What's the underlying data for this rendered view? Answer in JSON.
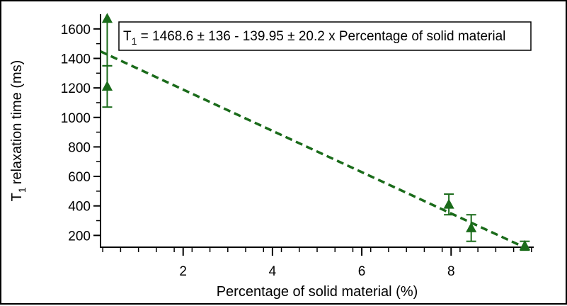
{
  "chart_data": {
    "type": "scatter",
    "xlabel": "Percentage of solid material (%)",
    "ylabel": "relaxation time (ms)",
    "ylabel_symbol": "T",
    "ylabel_subscript": "1",
    "annotation": {
      "symbol": "T",
      "subscript": "1",
      "text": " = 1468.6 ± 136 - 139.95 ± 20.2 x Percentage of solid material"
    },
    "xlim": [
      0.15,
      9.85
    ],
    "ylim": [
      120,
      1700
    ],
    "x_ticks": [
      2,
      4,
      6,
      8
    ],
    "y_ticks": [
      200,
      400,
      600,
      800,
      1000,
      1200,
      1400,
      1600
    ],
    "x_tick_labels": [
      "2",
      "4",
      "6",
      "8"
    ],
    "y_tick_labels": [
      "200",
      "400",
      "600",
      "800",
      "1000",
      "1200",
      "1400",
      "1600"
    ],
    "grid": false,
    "series": [
      {
        "marker": "triangle",
        "color": "#1a6b1a",
        "points": [
          {
            "x": 0.3,
            "y": 1670,
            "err_low": 320,
            "err_high": 0
          },
          {
            "x": 0.3,
            "y": 1210,
            "err_low": 140,
            "err_high": 140
          },
          {
            "x": 7.95,
            "y": 410,
            "err_low": 70,
            "err_high": 70
          },
          {
            "x": 8.45,
            "y": 250,
            "err_low": 90,
            "err_high": 90
          },
          {
            "x": 9.65,
            "y": 130,
            "err_low": 30,
            "err_high": 30
          }
        ]
      }
    ],
    "fit_line": {
      "style": "dashed",
      "color": "#1a6b1a",
      "intercept": 1468.6,
      "slope": -139.95,
      "x_range": [
        0.15,
        9.75
      ]
    }
  }
}
